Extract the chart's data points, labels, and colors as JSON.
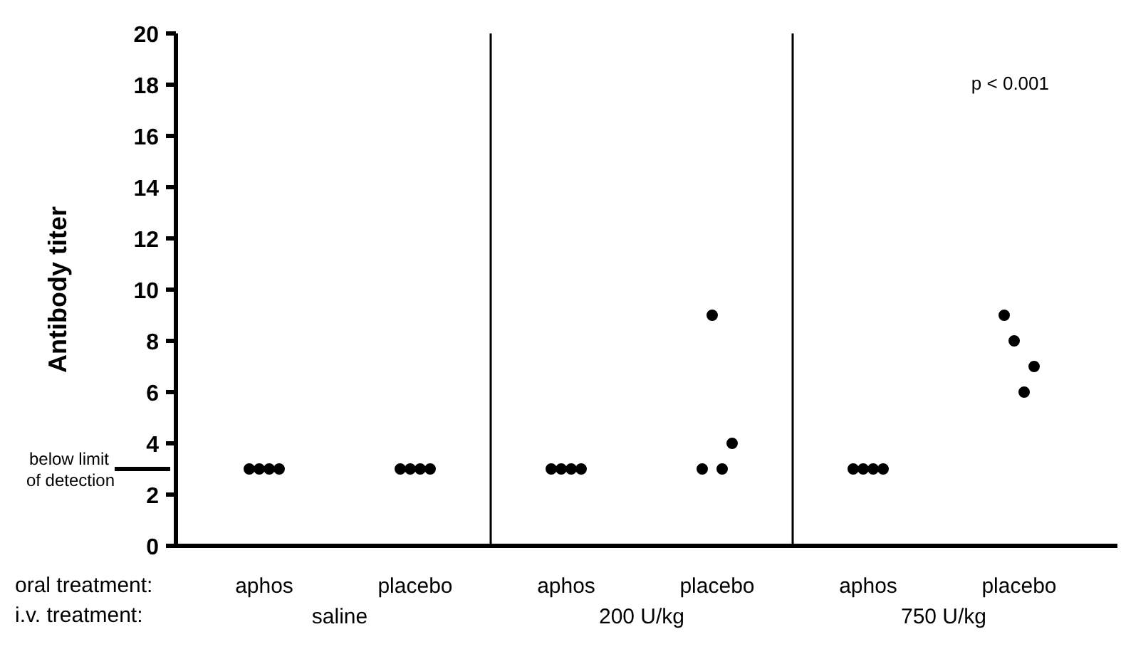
{
  "chart_data": {
    "type": "scatter",
    "ylabel": "Antibody titer",
    "categories": [
      "aphos",
      "placebo",
      "aphos",
      "placebo",
      "aphos",
      "placebo"
    ],
    "series": [
      {
        "color": "#000000",
        "values": [
          3,
          3,
          3,
          3,
          3,
          9
        ]
      },
      {
        "color": "#000000",
        "values": [
          3,
          3,
          3,
          9,
          3,
          8
        ]
      },
      {
        "color": "#000000",
        "values": [
          3,
          3,
          3,
          3,
          3,
          6
        ]
      },
      {
        "color": "#000000",
        "values": [
          3,
          3,
          3,
          4,
          3,
          7
        ]
      }
    ],
    "ylim": [
      0,
      20
    ],
    "yticks": [
      0,
      2,
      4,
      6,
      8,
      10,
      12,
      14,
      16,
      18,
      20
    ],
    "annotations": [
      "oral treatment:",
      "i.v. treatment:",
      "p < 0.001",
      "saline",
      "200 U/kg",
      "750 U/kg",
      "below limit of detection"
    ],
    "grid": false,
    "marker": "circle"
  }
}
